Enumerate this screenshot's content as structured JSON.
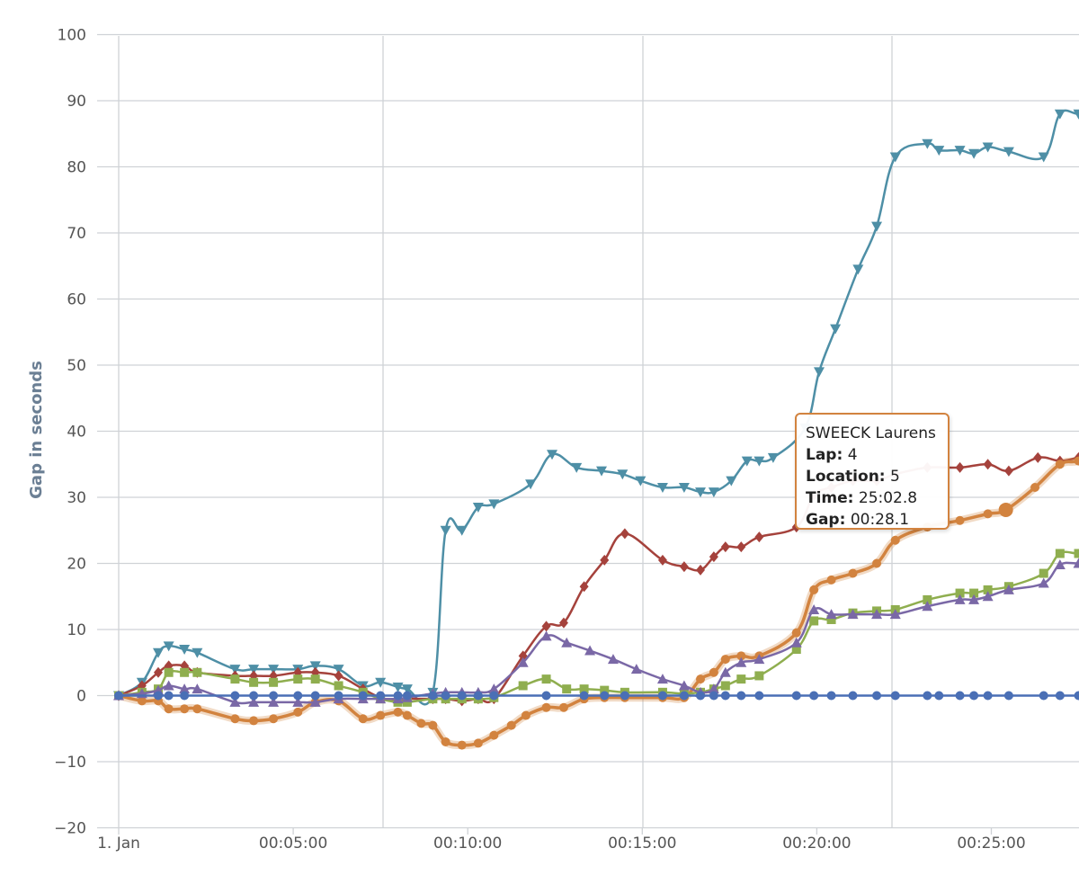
{
  "chart_data": {
    "type": "line",
    "title": "",
    "xlabel": "",
    "ylabel": "Gap in seconds",
    "ylim": [
      -20,
      100
    ],
    "yticks": [
      "100",
      "90",
      "80",
      "70",
      "60",
      "50",
      "40",
      "30",
      "20",
      "10",
      "0",
      "−10",
      "−20"
    ],
    "xticks": [
      {
        "label": "1. Jan",
        "t": 0
      },
      {
        "label": "00:05:00",
        "t": 300
      },
      {
        "label": "00:10:00",
        "t": 600
      },
      {
        "label": "00:15:00",
        "t": 900
      },
      {
        "label": "00:20:00",
        "t": 1200
      },
      {
        "label": "00:25:00",
        "t": 1500
      }
    ],
    "grid": true,
    "legend": "none",
    "series": [
      {
        "color": "#4e8fa6",
        "marker": "triangle-down",
        "points": [
          [
            0,
            0
          ],
          [
            40,
            2
          ],
          [
            68,
            6.5
          ],
          [
            86,
            7.5
          ],
          [
            113,
            7
          ],
          [
            135,
            6.5
          ],
          [
            200,
            4
          ],
          [
            232,
            4
          ],
          [
            266,
            4
          ],
          [
            308,
            4
          ],
          [
            338,
            4.5
          ],
          [
            378,
            4
          ],
          [
            420,
            1.5
          ],
          [
            450,
            2
          ],
          [
            480,
            1.3
          ],
          [
            496,
            1
          ],
          [
            540,
            0.5
          ],
          [
            562,
            25
          ],
          [
            590,
            25
          ],
          [
            618,
            28.5
          ],
          [
            645,
            29
          ],
          [
            708,
            32
          ],
          [
            745,
            36.5
          ],
          [
            787,
            34.5
          ],
          [
            830,
            34
          ],
          [
            866,
            33.5
          ],
          [
            897,
            32.5
          ],
          [
            935,
            31.5
          ],
          [
            972,
            31.5
          ],
          [
            1000,
            30.8
          ],
          [
            1023,
            30.8
          ],
          [
            1053,
            32.5
          ],
          [
            1080,
            35.5
          ],
          [
            1101,
            35.5
          ],
          [
            1125,
            36
          ],
          [
            1180,
            40.5
          ],
          [
            1204,
            49
          ],
          [
            1232,
            55.5
          ],
          [
            1271,
            64.5
          ],
          [
            1303,
            71
          ],
          [
            1335,
            81.5
          ],
          [
            1390,
            83.5
          ],
          [
            1410,
            82.5
          ],
          [
            1446,
            82.5
          ],
          [
            1470,
            82
          ],
          [
            1494,
            83
          ],
          [
            1530,
            82.3
          ],
          [
            1590,
            81.5
          ],
          [
            1618,
            88
          ],
          [
            1650,
            88
          ],
          [
            1695,
            88
          ],
          [
            1745,
            87.5
          ]
        ]
      },
      {
        "color": "#a5423c",
        "marker": "diamond",
        "points": [
          [
            0,
            0
          ],
          [
            40,
            1.5
          ],
          [
            68,
            3.5
          ],
          [
            86,
            4.5
          ],
          [
            113,
            4.5
          ],
          [
            135,
            3.5
          ],
          [
            200,
            3
          ],
          [
            232,
            3
          ],
          [
            266,
            3
          ],
          [
            308,
            3.5
          ],
          [
            338,
            3.5
          ],
          [
            378,
            3
          ],
          [
            420,
            1
          ],
          [
            450,
            -0.3
          ],
          [
            480,
            -0.8
          ],
          [
            496,
            -0.5
          ],
          [
            540,
            -0.5
          ],
          [
            562,
            -0.5
          ],
          [
            590,
            -0.8
          ],
          [
            618,
            -0.5
          ],
          [
            645,
            -0.5
          ],
          [
            695,
            6
          ],
          [
            735,
            10.5
          ],
          [
            765,
            11
          ],
          [
            800,
            16.5
          ],
          [
            835,
            20.5
          ],
          [
            870,
            24.5
          ],
          [
            935,
            20.5
          ],
          [
            972,
            19.5
          ],
          [
            1000,
            19
          ],
          [
            1023,
            21
          ],
          [
            1043,
            22.5
          ],
          [
            1070,
            22.5
          ],
          [
            1101,
            24
          ],
          [
            1165,
            25.5
          ],
          [
            1195,
            30.3
          ],
          [
            1225,
            31.5
          ],
          [
            1262,
            32.5
          ],
          [
            1303,
            32.5
          ],
          [
            1335,
            33.5
          ],
          [
            1390,
            34.5
          ],
          [
            1446,
            34.5
          ],
          [
            1494,
            35
          ],
          [
            1530,
            34
          ],
          [
            1580,
            36
          ],
          [
            1618,
            35.5
          ],
          [
            1650,
            36
          ],
          [
            1695,
            36.5
          ],
          [
            1745,
            37
          ]
        ]
      },
      {
        "color": "#d2833f",
        "marker": "circle",
        "points": [
          [
            0,
            0
          ],
          [
            40,
            -0.8
          ],
          [
            68,
            -0.8
          ],
          [
            86,
            -2
          ],
          [
            113,
            -2
          ],
          [
            135,
            -2
          ],
          [
            200,
            -3.5
          ],
          [
            232,
            -3.8
          ],
          [
            266,
            -3.5
          ],
          [
            308,
            -2.5
          ],
          [
            338,
            -1
          ],
          [
            378,
            -0.8
          ],
          [
            420,
            -3.5
          ],
          [
            450,
            -3
          ],
          [
            480,
            -2.5
          ],
          [
            496,
            -3
          ],
          [
            520,
            -4.2
          ],
          [
            540,
            -4.5
          ],
          [
            562,
            -7
          ],
          [
            590,
            -7.5
          ],
          [
            618,
            -7.2
          ],
          [
            645,
            -6
          ],
          [
            675,
            -4.5
          ],
          [
            700,
            -3
          ],
          [
            735,
            -1.8
          ],
          [
            765,
            -1.8
          ],
          [
            800,
            -0.5
          ],
          [
            835,
            -0.3
          ],
          [
            870,
            -0.3
          ],
          [
            935,
            -0.3
          ],
          [
            972,
            -0.3
          ],
          [
            1000,
            2.5
          ],
          [
            1023,
            3.5
          ],
          [
            1043,
            5.5
          ],
          [
            1070,
            6
          ],
          [
            1101,
            6
          ],
          [
            1165,
            9.5
          ],
          [
            1195,
            16
          ],
          [
            1225,
            17.5
          ],
          [
            1262,
            18.5
          ],
          [
            1303,
            20
          ],
          [
            1335,
            23.5
          ],
          [
            1390,
            25.5
          ],
          [
            1446,
            26.5
          ],
          [
            1494,
            27.5
          ],
          [
            1525,
            28.1
          ],
          [
            1575,
            31.5
          ],
          [
            1618,
            35
          ],
          [
            1650,
            35.5
          ],
          [
            1695,
            37
          ],
          [
            1745,
            38
          ]
        ]
      },
      {
        "color": "#8fae4f",
        "marker": "square",
        "points": [
          [
            0,
            0
          ],
          [
            40,
            0.5
          ],
          [
            68,
            1
          ],
          [
            86,
            3.5
          ],
          [
            113,
            3.5
          ],
          [
            135,
            3.5
          ],
          [
            200,
            2.5
          ],
          [
            232,
            2
          ],
          [
            266,
            2
          ],
          [
            308,
            2.5
          ],
          [
            338,
            2.5
          ],
          [
            378,
            1.5
          ],
          [
            420,
            0.5
          ],
          [
            450,
            -0.5
          ],
          [
            480,
            -1
          ],
          [
            496,
            -1
          ],
          [
            540,
            -0.5
          ],
          [
            562,
            -0.5
          ],
          [
            590,
            -0.5
          ],
          [
            618,
            -0.5
          ],
          [
            645,
            -0.3
          ],
          [
            695,
            1.5
          ],
          [
            735,
            2.5
          ],
          [
            770,
            1
          ],
          [
            800,
            1
          ],
          [
            835,
            0.8
          ],
          [
            870,
            0.5
          ],
          [
            935,
            0.5
          ],
          [
            972,
            0.3
          ],
          [
            1000,
            0.5
          ],
          [
            1023,
            1
          ],
          [
            1043,
            1.5
          ],
          [
            1070,
            2.5
          ],
          [
            1101,
            3
          ],
          [
            1165,
            7
          ],
          [
            1195,
            11.3
          ],
          [
            1225,
            11.5
          ],
          [
            1262,
            12.5
          ],
          [
            1303,
            12.8
          ],
          [
            1335,
            13
          ],
          [
            1390,
            14.5
          ],
          [
            1446,
            15.5
          ],
          [
            1470,
            15.5
          ],
          [
            1494,
            16
          ],
          [
            1530,
            16.5
          ],
          [
            1590,
            18.5
          ],
          [
            1618,
            21.5
          ],
          [
            1650,
            21.5
          ],
          [
            1695,
            21.5
          ],
          [
            1745,
            22.5
          ]
        ]
      },
      {
        "color": "#7a68a6",
        "marker": "triangle-up",
        "points": [
          [
            0,
            0
          ],
          [
            40,
            0.3
          ],
          [
            68,
            0.8
          ],
          [
            86,
            1.5
          ],
          [
            113,
            1
          ],
          [
            135,
            1
          ],
          [
            200,
            -1
          ],
          [
            232,
            -1
          ],
          [
            266,
            -1
          ],
          [
            308,
            -1
          ],
          [
            338,
            -1
          ],
          [
            378,
            -0.5
          ],
          [
            420,
            -0.5
          ],
          [
            450,
            -0.5
          ],
          [
            480,
            -0.5
          ],
          [
            496,
            -0.3
          ],
          [
            540,
            0.3
          ],
          [
            562,
            0.5
          ],
          [
            590,
            0.5
          ],
          [
            618,
            0.5
          ],
          [
            645,
            1
          ],
          [
            695,
            5
          ],
          [
            735,
            9
          ],
          [
            770,
            8
          ],
          [
            810,
            6.8
          ],
          [
            850,
            5.5
          ],
          [
            890,
            4
          ],
          [
            935,
            2.5
          ],
          [
            972,
            1.5
          ],
          [
            1000,
            0.5
          ],
          [
            1023,
            1
          ],
          [
            1043,
            3.5
          ],
          [
            1070,
            5
          ],
          [
            1101,
            5.5
          ],
          [
            1165,
            8
          ],
          [
            1195,
            13
          ],
          [
            1225,
            12.3
          ],
          [
            1262,
            12.3
          ],
          [
            1303,
            12.3
          ],
          [
            1335,
            12.3
          ],
          [
            1390,
            13.5
          ],
          [
            1446,
            14.5
          ],
          [
            1470,
            14.5
          ],
          [
            1494,
            15
          ],
          [
            1530,
            16
          ],
          [
            1590,
            17
          ],
          [
            1618,
            19.8
          ],
          [
            1650,
            20
          ],
          [
            1695,
            20
          ],
          [
            1745,
            20.5
          ]
        ]
      },
      {
        "color": "#4a6fb5",
        "marker": "circle",
        "points": [
          [
            0,
            0
          ],
          [
            68,
            0
          ],
          [
            86,
            0
          ],
          [
            113,
            0
          ],
          [
            200,
            0
          ],
          [
            232,
            0
          ],
          [
            266,
            0
          ],
          [
            308,
            0
          ],
          [
            338,
            0
          ],
          [
            378,
            0
          ],
          [
            420,
            0
          ],
          [
            450,
            0
          ],
          [
            480,
            0
          ],
          [
            496,
            0
          ],
          [
            540,
            0
          ],
          [
            562,
            0
          ],
          [
            590,
            0
          ],
          [
            618,
            0
          ],
          [
            645,
            0
          ],
          [
            735,
            0
          ],
          [
            800,
            0
          ],
          [
            835,
            0
          ],
          [
            870,
            0
          ],
          [
            935,
            0
          ],
          [
            972,
            0
          ],
          [
            1000,
            0
          ],
          [
            1023,
            0
          ],
          [
            1043,
            0
          ],
          [
            1070,
            0
          ],
          [
            1101,
            0
          ],
          [
            1165,
            0
          ],
          [
            1195,
            0
          ],
          [
            1225,
            0
          ],
          [
            1262,
            0
          ],
          [
            1303,
            0
          ],
          [
            1335,
            0
          ],
          [
            1390,
            0
          ],
          [
            1410,
            0
          ],
          [
            1446,
            0
          ],
          [
            1470,
            0
          ],
          [
            1494,
            0
          ],
          [
            1530,
            0
          ],
          [
            1590,
            0
          ],
          [
            1618,
            0
          ],
          [
            1650,
            0
          ],
          [
            1695,
            0
          ],
          [
            1745,
            0
          ]
        ]
      }
    ],
    "tooltip": {
      "rider": "SWEECK Laurens",
      "lap_label": "Lap:",
      "lap": "4",
      "location_label": "Location:",
      "location": "5",
      "time_label": "Time:",
      "time": "25:02.8",
      "gap_label": "Gap:",
      "gap": "00:28.1",
      "series_index": 2,
      "point_index": 45
    }
  }
}
